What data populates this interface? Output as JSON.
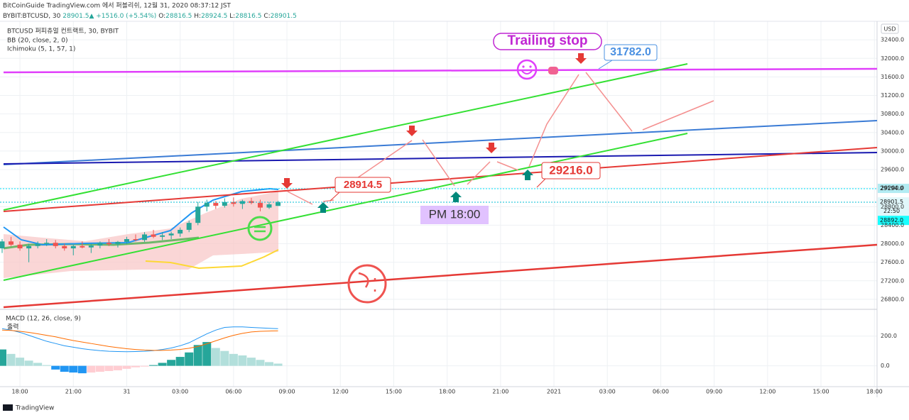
{
  "header": {
    "line1": "BitCoinGuide TradingView.com 에서 퍼블리쉬, 12월 31, 2020 08:37:12 JST",
    "symbol": "BYBIT:BTCUSD, 30",
    "price": "28901.5",
    "change": "▲ +1516.0 (+5.54%)",
    "ohlc": [
      {
        "label": "O:",
        "value": "28816.5"
      },
      {
        "label": "H:",
        "value": "28924.5"
      },
      {
        "label": "L:",
        "value": "28816.5"
      },
      {
        "label": "C:",
        "value": "28901.5"
      }
    ]
  },
  "legend": [
    "BTCUSD 퍼피츄얼 컨트랙트, 30, BYBIT",
    "BB (20, close, 2, 0)",
    "Ichimoku (5, 1, 57, 1)"
  ],
  "currency": "USD",
  "annotations": {
    "trailing_stop": "Trailing stop",
    "target": "31782.0",
    "entry": "28914.5",
    "stop": "29216.0",
    "time": "PM 18:00"
  },
  "countdown": "22:50",
  "footer": "TradingView",
  "chart_data": {
    "type": "candlestick",
    "x": [
      -1,
      -0.5,
      0,
      0.5,
      1,
      1.5,
      2,
      2.5,
      3,
      3.5,
      4,
      4.5,
      5,
      5.5,
      6,
      6.5,
      7,
      7.5,
      8,
      8.5,
      9,
      9.5,
      10,
      10.5,
      11,
      11.5,
      12,
      12.5,
      13,
      13.5,
      14,
      14.5
    ],
    "open": [
      27900,
      28050,
      27980,
      27900,
      27950,
      28000,
      28020,
      27950,
      27900,
      27950,
      27920,
      27960,
      28020,
      27990,
      28040,
      28100,
      28080,
      28200,
      28150,
      28180,
      28220,
      28300,
      28450,
      28800,
      28880,
      28820,
      28900,
      28860,
      28920,
      28880,
      28780,
      28816.5
    ],
    "high": [
      28100,
      28150,
      28050,
      28000,
      28050,
      28100,
      28080,
      28000,
      27980,
      28050,
      28000,
      28050,
      28100,
      28060,
      28150,
      28200,
      28250,
      28300,
      28250,
      28260,
      28350,
      28500,
      28900,
      28950,
      28920,
      28980,
      29000,
      28950,
      28990,
      28950,
      28900,
      28924.5
    ],
    "low": [
      27800,
      27950,
      27850,
      27600,
      27900,
      27950,
      27900,
      27850,
      27750,
      27900,
      27800,
      27900,
      27950,
      27920,
      27990,
      28050,
      28040,
      28120,
      28080,
      28100,
      28150,
      28250,
      28400,
      28700,
      28750,
      28780,
      28800,
      28750,
      28850,
      28700,
      28750,
      28816.5
    ],
    "close": [
      28050,
      27980,
      27900,
      27950,
      28000,
      28020,
      27950,
      27900,
      27950,
      27920,
      27960,
      28020,
      27990,
      28040,
      28100,
      28080,
      28200,
      28150,
      28180,
      28220,
      28300,
      28450,
      28800,
      28880,
      28820,
      28900,
      28860,
      28920,
      28880,
      28780,
      28850,
      28901.5
    ],
    "up_color": "#26a69a",
    "down_color": "#ef5350",
    "xlim": [
      -1.12,
      48.15
    ],
    "xticks": [
      {
        "value": 0,
        "label": "18:00"
      },
      {
        "value": 3,
        "label": "21:00"
      },
      {
        "value": 6,
        "label": "31"
      },
      {
        "value": 9,
        "label": "03:00"
      },
      {
        "value": 12,
        "label": "06:00"
      },
      {
        "value": 15,
        "label": "09:00"
      },
      {
        "value": 18,
        "label": "12:00"
      },
      {
        "value": 21,
        "label": "15:00"
      },
      {
        "value": 24,
        "label": "18:00"
      },
      {
        "value": 27,
        "label": "21:00"
      },
      {
        "value": 30,
        "label": "2021"
      },
      {
        "value": 33,
        "label": "03:00"
      },
      {
        "value": 36,
        "label": "06:00"
      },
      {
        "value": 39,
        "label": "09:00"
      },
      {
        "value": 42,
        "label": "12:00"
      },
      {
        "value": 45,
        "label": "15:00"
      },
      {
        "value": 48,
        "label": "18:00"
      }
    ],
    "ylim": [
      26600,
      32800
    ],
    "yticks": [
      {
        "value": 26800,
        "label": "26800.0"
      },
      {
        "value": 27200,
        "label": "27200.0"
      },
      {
        "value": 27600,
        "label": "27600.0"
      },
      {
        "value": 28000,
        "label": "28000.0"
      },
      {
        "value": 28400,
        "label": "28400.0"
      },
      {
        "value": 28800,
        "label": "28800.0"
      },
      {
        "value": 29200,
        "label": "29200.0"
      },
      {
        "value": 29600,
        "label": "29600.0"
      },
      {
        "value": 30000,
        "label": "30000.0"
      },
      {
        "value": 30400,
        "label": "30400.0"
      },
      {
        "value": 30800,
        "label": "30800.0"
      },
      {
        "value": 31200,
        "label": "31200.0"
      },
      {
        "value": 31600,
        "label": "31600.0"
      },
      {
        "value": 32000,
        "label": "32000.0"
      },
      {
        "value": 32400,
        "label": "32400.0"
      }
    ],
    "grid": true,
    "price_labels": [
      {
        "value": 29194,
        "label": "29194.0",
        "color": "#b2ebf2"
      },
      {
        "value": 28901.5,
        "label": "28901.5",
        "color": "#e0f7fa"
      },
      {
        "value": 28892,
        "label": "28892.0",
        "color": "#18ffff"
      }
    ],
    "macd": {
      "title": "MACD (12, 26, close, 9)",
      "label": "출력",
      "ylim": [
        -140,
        375
      ],
      "yticks": [
        {
          "value": 0,
          "label": "0.0"
        },
        {
          "value": 200,
          "label": "200.0"
        }
      ],
      "histogram": [
        110,
        80,
        55,
        35,
        20,
        5,
        -25,
        -40,
        -45,
        -50,
        -45,
        -40,
        -35,
        -30,
        -20,
        -10,
        -5,
        5,
        20,
        40,
        60,
        90,
        140,
        160,
        120,
        100,
        80,
        70,
        55,
        40,
        25,
        15
      ],
      "hist_colors": {
        "pos_up": "#26a69a",
        "pos_down": "#b2dfdb",
        "neg_down": "#2196f3",
        "neg_up": "#ffcdd2"
      },
      "series": [
        {
          "color": "#2196f3",
          "values": [
            250,
            240,
            225,
            205,
            185,
            165,
            150,
            135,
            125,
            115,
            108,
            102,
            98,
            96,
            95,
            96,
            98,
            102,
            110,
            120,
            135,
            155,
            185,
            215,
            240,
            258,
            262,
            262,
            258,
            255,
            252,
            250
          ]
        },
        {
          "color": "#ff6d00",
          "values": [
            240,
            238,
            232,
            225,
            215,
            205,
            195,
            182,
            170,
            160,
            150,
            140,
            130,
            122,
            115,
            110,
            106,
            104,
            104,
            106,
            110,
            118,
            130,
            148,
            168,
            188,
            205,
            218,
            228,
            232,
            234,
            235
          ]
        }
      ]
    }
  }
}
